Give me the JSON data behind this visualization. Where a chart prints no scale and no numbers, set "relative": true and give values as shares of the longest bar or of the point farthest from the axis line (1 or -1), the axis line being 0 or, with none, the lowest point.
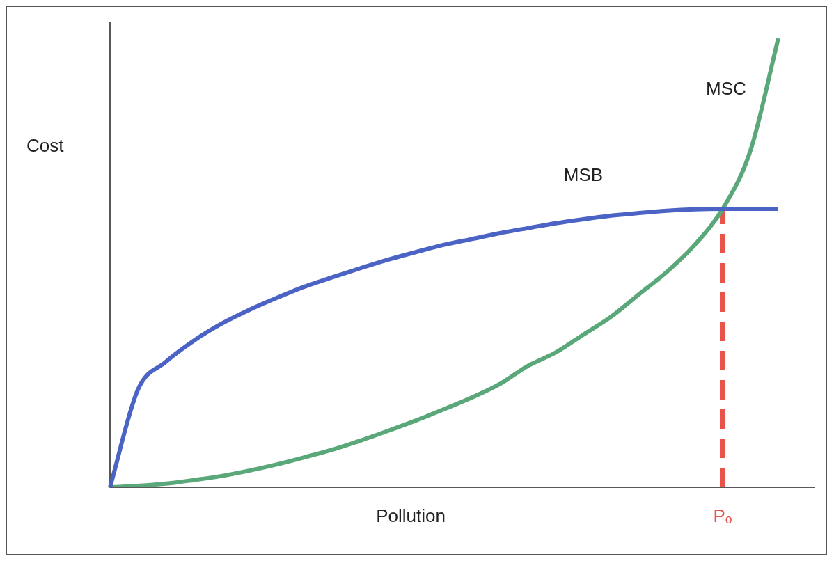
{
  "chart_data": {
    "type": "line",
    "relative": true,
    "xlabel": "Pollution",
    "ylabel": "Cost",
    "legend": false,
    "annotations": [
      "Pₒ"
    ],
    "marker": "none",
    "line_style": "solid",
    "categories": [
      null,
      null,
      null,
      null,
      null,
      null,
      null,
      null,
      null,
      null,
      null,
      null,
      null,
      null,
      null,
      null,
      null,
      null,
      null,
      null,
      null,
      null,
      null,
      null,
      null
    ],
    "series": [
      {
        "name": "MSB",
        "color": "#4a63c4",
        "values": [
          0,
          0.217,
          0.279,
          0.326,
          0.364,
          0.395,
          0.422,
          0.447,
          0.468,
          0.488,
          0.507,
          0.524,
          0.54,
          0.553,
          0.566,
          0.577,
          0.588,
          0.597,
          0.605,
          0.611,
          0.616,
          0.619,
          0.62,
          0.62,
          0.62
        ]
      },
      {
        "name": "MSC",
        "color": "#5aa87a",
        "values": [
          0,
          0.003,
          0.008,
          0.016,
          0.025,
          0.037,
          0.051,
          0.067,
          0.084,
          0.104,
          0.126,
          0.149,
          0.174,
          0.2,
          0.23,
          0.27,
          0.3,
          0.34,
          0.38,
          0.43,
          0.48,
          0.54,
          0.62,
          0.75,
          1
        ]
      }
    ]
  }
}
